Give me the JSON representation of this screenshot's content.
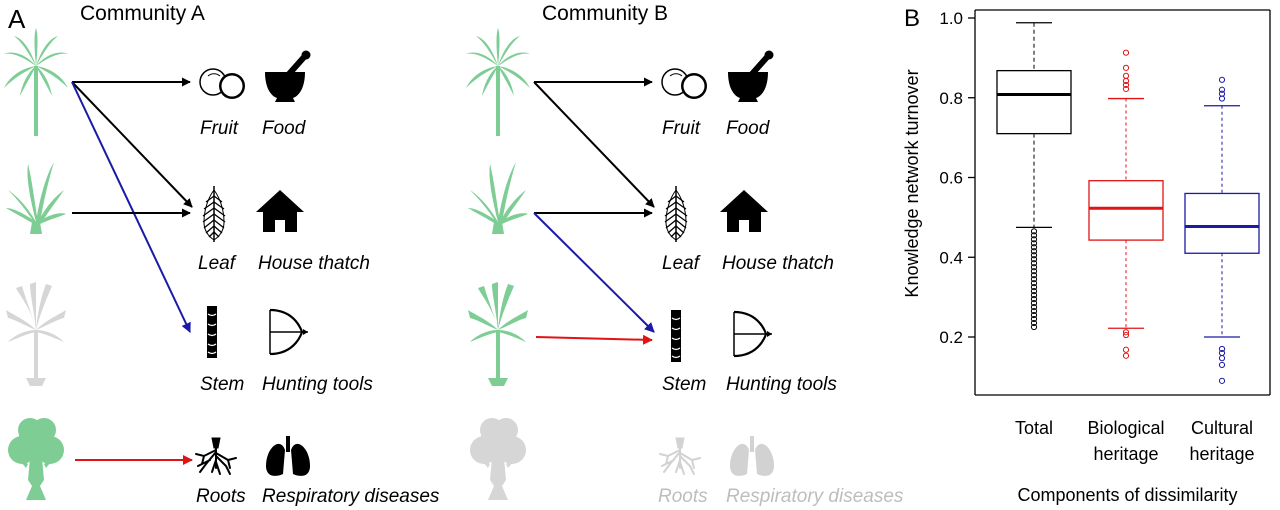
{
  "panel_a": {
    "label": "A",
    "community_a": "Community A",
    "community_b": "Community B",
    "parts": {
      "fruit": "Fruit",
      "leaf": "Leaf",
      "stem": "Stem",
      "roots": "Roots"
    },
    "uses": {
      "food": "Food",
      "house": "House thatch",
      "hunting": "Hunting tools",
      "resp": "Respiratory diseases"
    },
    "colors": {
      "plant": "#7dcd94",
      "plant_faded": "#d6d6d6",
      "arrow_black": "#000000",
      "arrow_blue": "#1a1aa8",
      "arrow_red": "#e01414",
      "faded_text": "#bdbdbd"
    }
  },
  "panel_b": {
    "label": "B",
    "colors": {
      "total": "#000000",
      "biological": "#e01414",
      "cultural": "#1a1aa8"
    }
  },
  "chart_data": {
    "type": "box",
    "categories": [
      "Total",
      "Biological heritage",
      "Cultural heritage"
    ],
    "category_lines": [
      [
        "Total"
      ],
      [
        "Biological",
        "heritage"
      ],
      [
        "Cultural",
        "heritage"
      ]
    ],
    "ylabel": "Knowledge network turnover",
    "xlabel": "Components of dissimilarity",
    "ylim": [
      0.05,
      1.0
    ],
    "yticks": [
      "0.2",
      "0.4",
      "0.6",
      "0.8",
      "1.0"
    ],
    "boxes": [
      {
        "name": "Total",
        "whisker_low": 0.475,
        "q1": 0.71,
        "median": 0.808,
        "q3": 0.868,
        "whisker_high": 0.988,
        "outliers_low": [
          0.465,
          0.455,
          0.445,
          0.435,
          0.425,
          0.415,
          0.405,
          0.395,
          0.385,
          0.375,
          0.365,
          0.355,
          0.345,
          0.335,
          0.325,
          0.315,
          0.305,
          0.295,
          0.285,
          0.275,
          0.265,
          0.255,
          0.245,
          0.235,
          0.225
        ],
        "outliers_high": []
      },
      {
        "name": "Biological heritage",
        "whisker_low": 0.222,
        "q1": 0.443,
        "median": 0.523,
        "q3": 0.592,
        "whisker_high": 0.798,
        "outliers_low": [
          0.212,
          0.205,
          0.168,
          0.153
        ],
        "outliers_high": [
          0.822,
          0.832,
          0.842,
          0.855,
          0.875,
          0.913
        ]
      },
      {
        "name": "Cultural heritage",
        "whisker_low": 0.2,
        "q1": 0.41,
        "median": 0.477,
        "q3": 0.56,
        "whisker_high": 0.78,
        "outliers_low": [
          0.17,
          0.16,
          0.147,
          0.13,
          0.09
        ],
        "outliers_high": [
          0.798,
          0.81,
          0.82,
          0.845
        ]
      }
    ]
  }
}
